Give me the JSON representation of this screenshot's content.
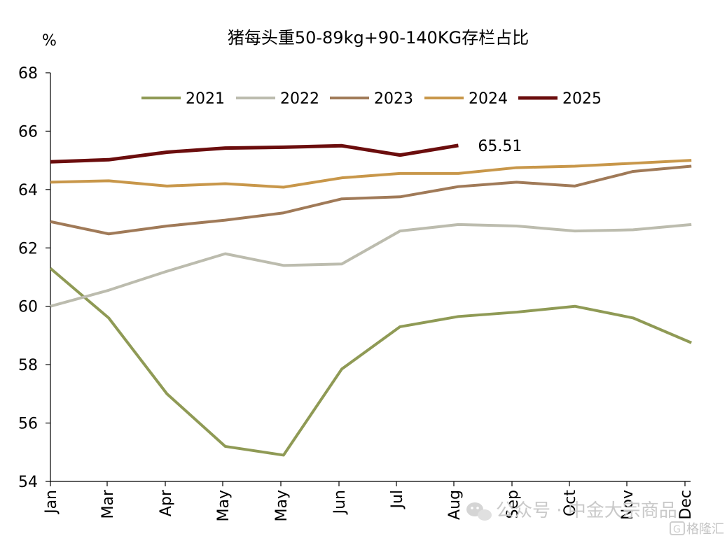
{
  "chart_data": {
    "type": "line",
    "title": "猪每头重50-89kg+90-140KG存栏占比",
    "ylabel": "%",
    "xlabel": "",
    "ylim": [
      54,
      68
    ],
    "yticks": [
      54,
      56,
      58,
      60,
      62,
      64,
      66,
      68
    ],
    "categories": [
      "Jan",
      "Mar",
      "Apr",
      "May",
      "May",
      "Jun",
      "Jul",
      "Aug",
      "Sep",
      "Oct",
      "Nov",
      "Dec"
    ],
    "legend_position": "top",
    "grid": false,
    "series": [
      {
        "name": "2021",
        "color": "#8f9a55",
        "values": [
          61.3,
          59.6,
          57.0,
          55.2,
          54.9,
          57.85,
          59.3,
          59.65,
          59.8,
          60.0,
          59.6,
          58.75
        ]
      },
      {
        "name": "2022",
        "color": "#bcbcae",
        "values": [
          60.0,
          60.55,
          61.2,
          61.8,
          61.4,
          61.45,
          62.58,
          62.8,
          62.75,
          62.58,
          62.62,
          62.8
        ]
      },
      {
        "name": "2023",
        "color": "#a07a58",
        "values": [
          62.9,
          62.48,
          62.75,
          62.95,
          63.2,
          63.68,
          63.75,
          64.1,
          64.25,
          64.12,
          64.62,
          64.8
        ]
      },
      {
        "name": "2024",
        "color": "#c8974a",
        "values": [
          64.25,
          64.3,
          64.12,
          64.2,
          64.08,
          64.4,
          64.55,
          64.55,
          64.75,
          64.8,
          64.9,
          65.0
        ]
      },
      {
        "name": "2025",
        "color": "#6b0d0d",
        "values": [
          64.95,
          65.02,
          65.28,
          65.42,
          65.45,
          65.5,
          65.18,
          65.51,
          null,
          null,
          null,
          null
        ]
      }
    ],
    "annotations": [
      {
        "text": "65.51",
        "series": "2025",
        "index": 7
      }
    ]
  },
  "watermark": {
    "text": "公众号 · 中金大宗商品",
    "logo_text": "格隆汇"
  }
}
